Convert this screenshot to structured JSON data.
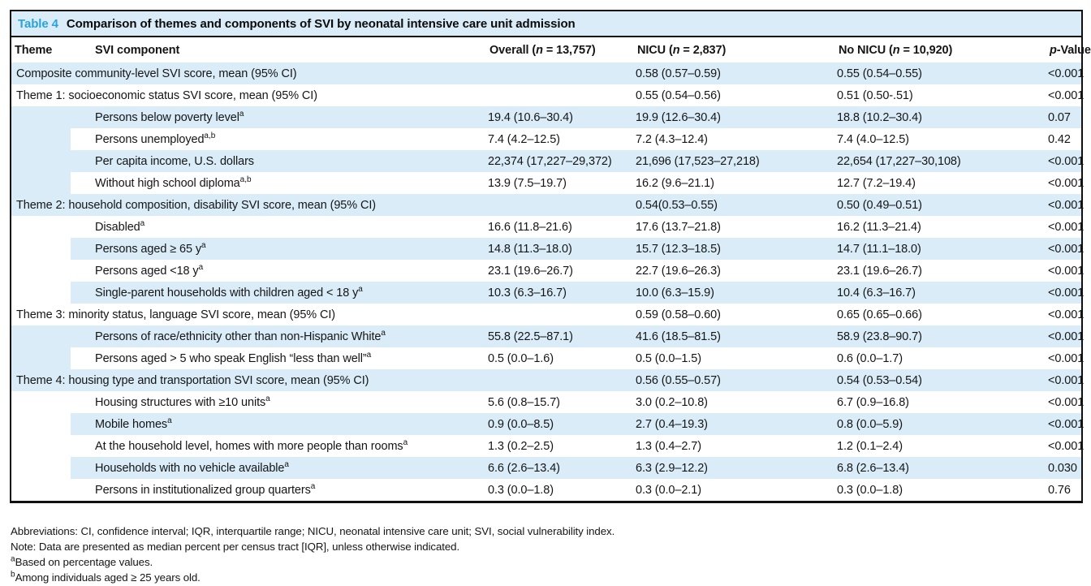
{
  "colors": {
    "accent": "#29a3dc",
    "stripe": "#d9ecf8",
    "border": "#101010"
  },
  "caption": {
    "label": "Table 4",
    "text": "Comparison of themes and components of SVI by neonatal intensive care unit admission"
  },
  "table": {
    "columns": [
      {
        "text": "Theme"
      },
      {
        "text": "SVI component"
      },
      {
        "pre": "Overall (",
        "italic": "n",
        "post": " = 13,757)"
      },
      {
        "pre": "NICU (",
        "italic": "n",
        "post": " = 2,837)"
      },
      {
        "pre": "No NICU (",
        "italic": "n",
        "post": " = 10,920)"
      },
      {
        "italic": "p",
        "post": "-Value"
      }
    ],
    "rows": [
      {
        "kind": "full",
        "label": "Composite community-level SVI score, mean (95% CI)",
        "overall": "",
        "nicu": "0.58 (0.57–0.59)",
        "no_nicu": "0.55 (0.54–0.55)",
        "p": "<0.001"
      },
      {
        "kind": "full",
        "label": "Theme 1: socioeconomic status SVI score, mean (95% CI)",
        "overall": "",
        "nicu": "0.55 (0.54–0.56)",
        "no_nicu": "0.51 (0.50-.51)",
        "p": "<0.001"
      },
      {
        "kind": "comp",
        "group_rows": 4,
        "label": "Persons below poverty level",
        "sup": "a",
        "overall": "19.4 (10.6–30.4)",
        "nicu": "19.9 (12.6–30.4)",
        "no_nicu": "18.8 (10.2–30.4)",
        "p": "0.07"
      },
      {
        "kind": "comp",
        "label": "Persons unemployed",
        "sup": "a,b",
        "overall": "7.4 (4.2–12.5)",
        "nicu": "7.2 (4.3–12.4)",
        "no_nicu": "7.4 (4.0–12.5)",
        "p": "0.42"
      },
      {
        "kind": "comp",
        "label": "Per capita income, U.S. dollars",
        "overall": "22,374 (17,227–29,372)",
        "nicu": "21,696 (17,523–27,218)",
        "no_nicu": "22,654 (17,227–30,108)",
        "p": "<0.001"
      },
      {
        "kind": "comp",
        "label": "Without high school diploma",
        "sup": "a,b",
        "overall": "13.9 (7.5–19.7)",
        "nicu": "16.2 (9.6–21.1)",
        "no_nicu": "12.7 (7.2–19.4)",
        "p": "<0.001"
      },
      {
        "kind": "full",
        "label": "Theme 2: household composition, disability SVI score, mean (95% CI)",
        "overall": "",
        "nicu": "0.54(0.53–0.55)",
        "no_nicu": "0.50 (0.49–0.51)",
        "p": "<0.001"
      },
      {
        "kind": "comp",
        "group_rows": 4,
        "label": "Disabled",
        "sup": "a",
        "overall": "16.6 (11.8–21.6)",
        "nicu": "17.6 (13.7–21.8)",
        "no_nicu": "16.2 (11.3–21.4)",
        "p": "<0.001"
      },
      {
        "kind": "comp",
        "label": "Persons aged ≥ 65 y",
        "sup": "a",
        "overall": "14.8 (11.3–18.0)",
        "nicu": "15.7 (12.3–18.5)",
        "no_nicu": "14.7 (11.1–18.0)",
        "p": "<0.001"
      },
      {
        "kind": "comp",
        "label": "Persons aged <18 y",
        "sup": "a",
        "overall": "23.1 (19.6–26.7)",
        "nicu": "22.7 (19.6–26.3)",
        "no_nicu": "23.1 (19.6–26.7)",
        "p": "<0.001"
      },
      {
        "kind": "comp",
        "label": "Single-parent households with children aged < 18 y",
        "sup": "a",
        "overall": "10.3 (6.3–16.7)",
        "nicu": "10.0 (6.3–15.9)",
        "no_nicu": "10.4 (6.3–16.7)",
        "p": "<0.001"
      },
      {
        "kind": "full",
        "label": "Theme 3: minority status, language SVI score, mean (95% CI)",
        "overall": "",
        "nicu": "0.59 (0.58–0.60)",
        "no_nicu": "0.65 (0.65–0.66)",
        "p": "<0.001"
      },
      {
        "kind": "comp",
        "group_rows": 2,
        "label": "Persons of race/ethnicity other than non-Hispanic White",
        "sup": "a",
        "overall": "55.8 (22.5–87.1)",
        "nicu": "41.6 (18.5–81.5)",
        "no_nicu": "58.9 (23.8–90.7)",
        "p": "<0.001"
      },
      {
        "kind": "comp",
        "label": "Persons aged > 5 who speak English “less than well”",
        "sup": "a",
        "overall": "0.5 (0.0–1.6)",
        "nicu": "0.5 (0.0–1.5)",
        "no_nicu": "0.6 (0.0–1.7)",
        "p": "<0.001"
      },
      {
        "kind": "full",
        "label": "Theme 4: housing type and transportation SVI score, mean (95% CI)",
        "overall": "",
        "nicu": "0.56 (0.55–0.57)",
        "no_nicu": "0.54 (0.53–0.54)",
        "p": "<0.001"
      },
      {
        "kind": "comp",
        "group_rows": 5,
        "label": "Housing structures with ≥10 units",
        "sup": "a",
        "overall": "5.6 (0.8–15.7)",
        "nicu": "3.0 (0.2–10.8)",
        "no_nicu": "6.7 (0.9–16.8)",
        "p": "<0.001"
      },
      {
        "kind": "comp",
        "label": "Mobile homes",
        "sup": "a",
        "overall": "0.9 (0.0–8.5)",
        "nicu": "2.7 (0.4–19.3)",
        "no_nicu": "0.8 (0.0–5.9)",
        "p": "<0.001"
      },
      {
        "kind": "comp",
        "label": "At the household level, homes with more people than rooms",
        "sup": "a",
        "overall": "1.3 (0.2–2.5)",
        "nicu": "1.3 (0.4–2.7)",
        "no_nicu": "1.2 (0.1–2.4)",
        "p": "<0.001"
      },
      {
        "kind": "comp",
        "label": "Households with no vehicle available",
        "sup": "a",
        "overall": "6.6 (2.6–13.4)",
        "nicu": "6.3 (2.9–12.2)",
        "no_nicu": "6.8 (2.6–13.4)",
        "p": "0.030"
      },
      {
        "kind": "comp",
        "label": "Persons in institutionalized group quarters",
        "sup": "a",
        "overall": "0.3 (0.0–1.8)",
        "nicu": "0.3 (0.0–2.1)",
        "no_nicu": "0.3 (0.0–1.8)",
        "p": "0.76"
      }
    ]
  },
  "footnotes": [
    {
      "sup": "",
      "text": "Abbreviations: CI, confidence interval; IQR, interquartile range; NICU, neonatal intensive care unit; SVI, social vulnerability index."
    },
    {
      "sup": "",
      "text": "Note: Data are presented as median percent per census tract [IQR], unless otherwise indicated."
    },
    {
      "sup": "a",
      "text": "Based on percentage values."
    },
    {
      "sup": "b",
      "text": "Among individuals aged ≥ 25 years old."
    }
  ]
}
